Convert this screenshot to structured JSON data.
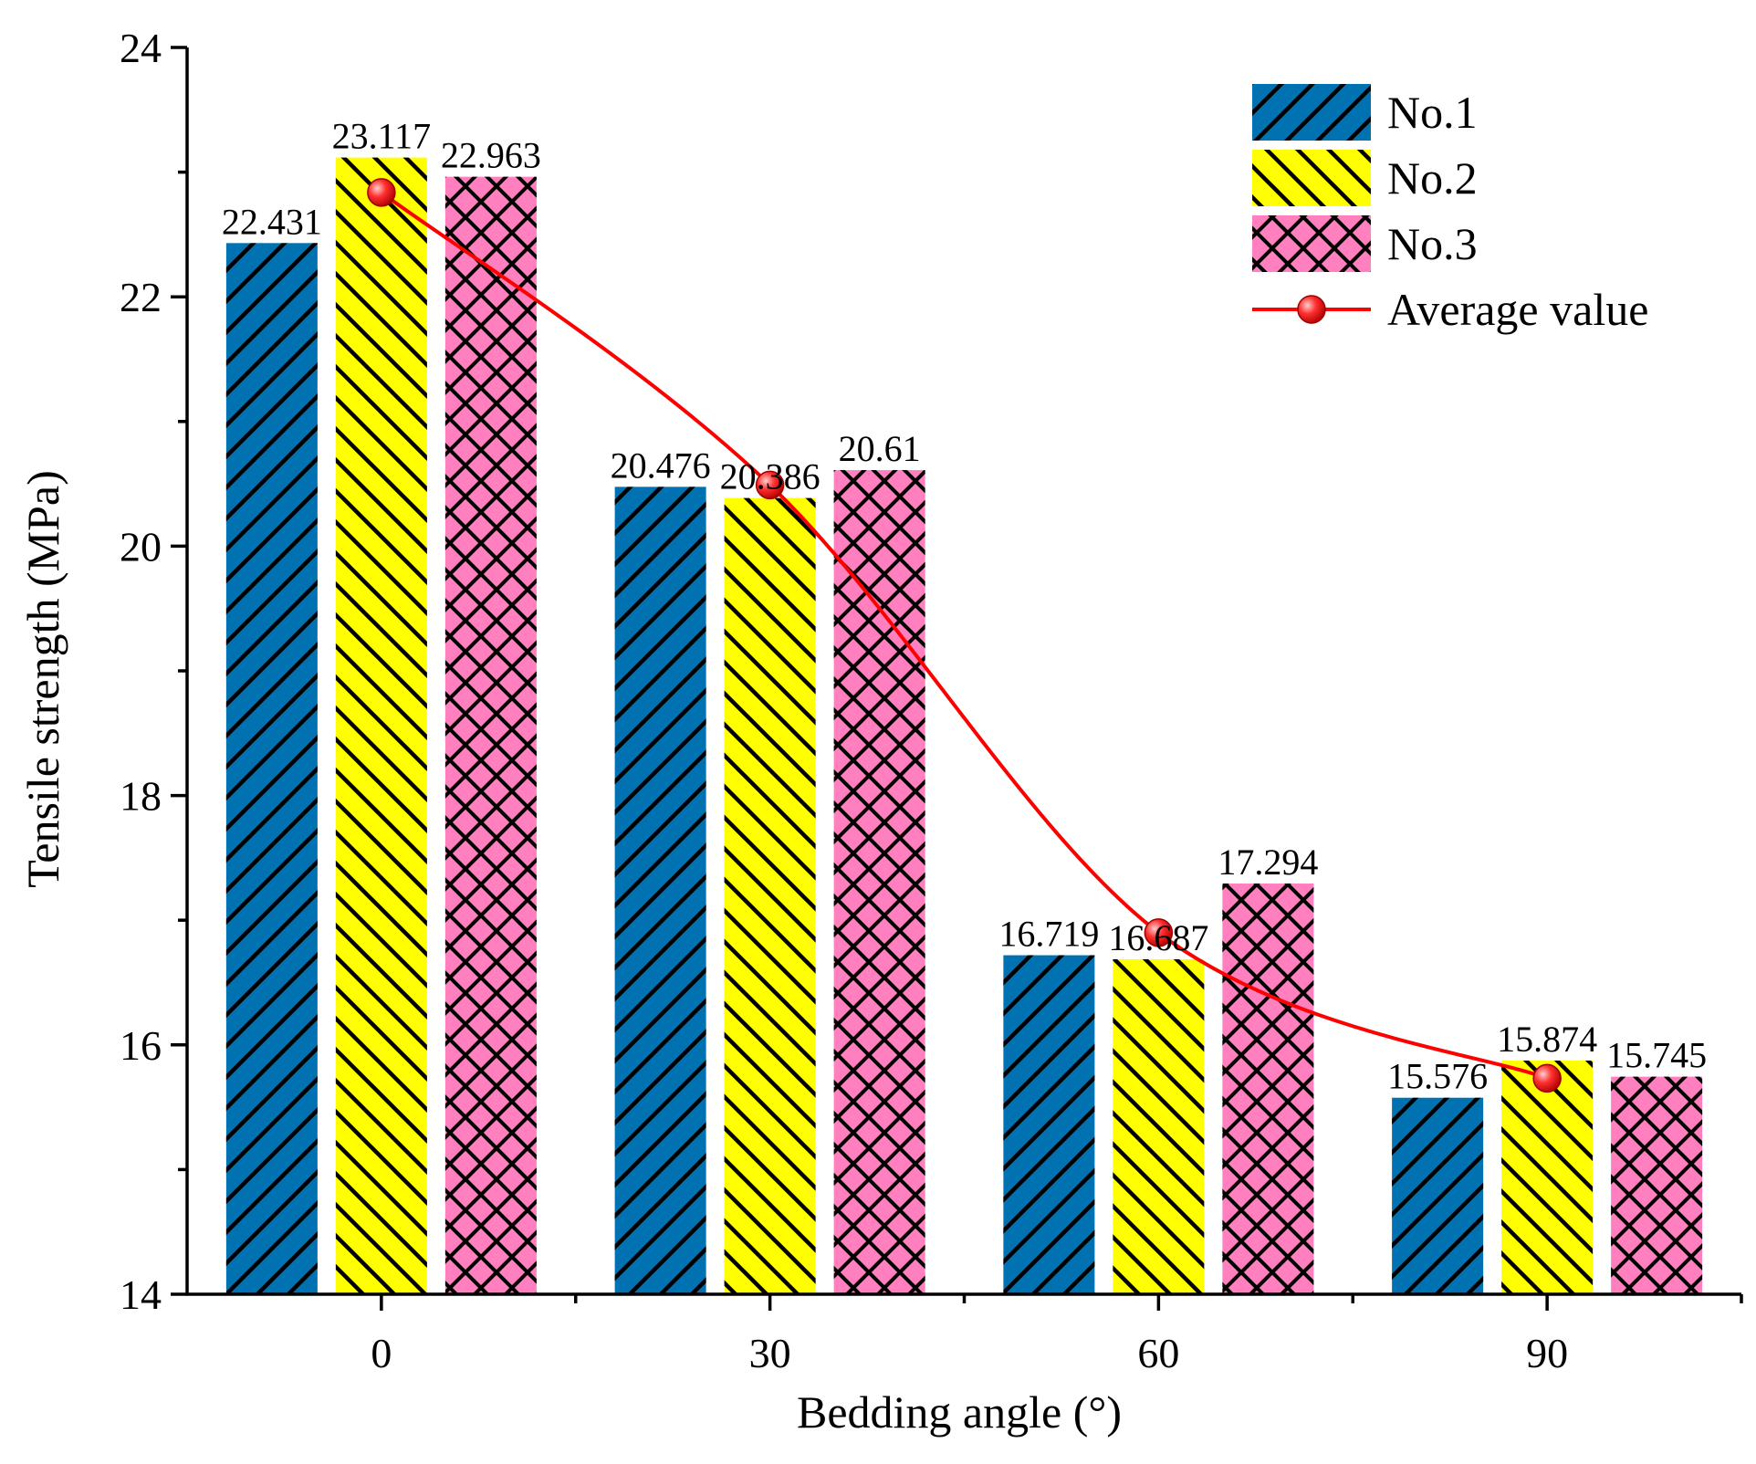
{
  "chart_data": {
    "type": "bar",
    "title": "",
    "xlabel": "Bedding angle (°)",
    "ylabel": "Tensile strength (MPa)",
    "categories": [
      "0",
      "30",
      "60",
      "90"
    ],
    "ylim": [
      14,
      24
    ],
    "yticks": [
      14,
      16,
      18,
      20,
      22,
      24
    ],
    "grid": false,
    "legend_position": "top-right",
    "series": [
      {
        "name": "No.1",
        "color": "#0072b2",
        "pattern": "forward-diagonal",
        "values": [
          22.431,
          20.476,
          16.719,
          15.576
        ],
        "labels": [
          "22.431",
          "20.476",
          "16.719",
          "15.576"
        ]
      },
      {
        "name": "No.2",
        "color": "#ffff00",
        "pattern": "backward-diagonal",
        "values": [
          23.117,
          20.386,
          16.687,
          15.874
        ],
        "labels": [
          "23.117",
          "20.386",
          "16.687",
          "15.874"
        ]
      },
      {
        "name": "No.3",
        "color": "#ff7fbf",
        "pattern": "crosshatch",
        "values": [
          22.963,
          20.61,
          17.294,
          15.745
        ],
        "labels": [
          "22.963",
          "20.61",
          "17.294",
          "15.745"
        ]
      }
    ],
    "line_series": {
      "name": "Average value",
      "color": "#ff0000",
      "marker": "circle",
      "smooth": true,
      "values": [
        22.837,
        20.491,
        16.9,
        15.732
      ]
    }
  }
}
